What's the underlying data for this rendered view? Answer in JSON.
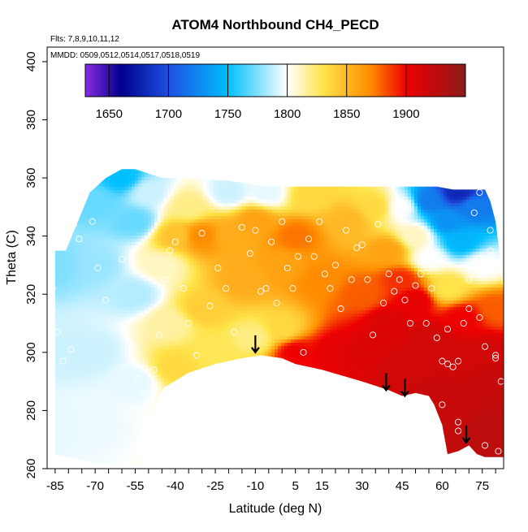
{
  "chart_data": {
    "type": "heatmap",
    "title": "ATOM4 Northbound CH4_PECD",
    "annotations": {
      "flights": "Flts: 7,8,9,10,11,12",
      "dates": "MMDD: 0509,0512,0514,0517,0518,0519"
    },
    "xlabel": "Latitude (deg N)",
    "ylabel": "Theta (C)",
    "xlim": [
      -88,
      83
    ],
    "ylim": [
      260,
      405
    ],
    "x_ticks": [
      "-85",
      "-70",
      "-55",
      "-40",
      "-25",
      "-10",
      "5",
      "15",
      "30",
      "45",
      "60",
      "75"
    ],
    "x_tick_values": [
      -85,
      -70,
      -55,
      -40,
      -25,
      -10,
      5,
      15,
      30,
      45,
      60,
      75
    ],
    "y_ticks": [
      "260",
      "280",
      "300",
      "320",
      "340",
      "360",
      "380",
      "400"
    ],
    "y_tick_values": [
      260,
      280,
      300,
      320,
      340,
      360,
      380,
      400
    ],
    "colorbar": {
      "min": 1630,
      "max": 1950,
      "ticks": [
        "1650",
        "1700",
        "1750",
        "1800",
        "1850",
        "1900"
      ],
      "tick_values": [
        1650,
        1700,
        1750,
        1800,
        1850,
        1900
      ],
      "stops": [
        {
          "value": 1630,
          "color": "#8a2be2"
        },
        {
          "value": 1660,
          "color": "#00008b"
        },
        {
          "value": 1700,
          "color": "#1e4fe0"
        },
        {
          "value": 1750,
          "color": "#00bfff"
        },
        {
          "value": 1800,
          "color": "#ffffff"
        },
        {
          "value": 1830,
          "color": "#ffe44a"
        },
        {
          "value": 1870,
          "color": "#ff8c00"
        },
        {
          "value": 1900,
          "color": "#ee0000"
        },
        {
          "value": 1950,
          "color": "#8b1a1a"
        }
      ]
    },
    "field_samples": [
      {
        "lat": -84,
        "theta": 330,
        "value": 1775
      },
      {
        "lat": -80,
        "theta": 300,
        "value": 1790
      },
      {
        "lat": -85,
        "theta": 275,
        "value": 1795
      },
      {
        "lat": -70,
        "theta": 352,
        "value": 1770
      },
      {
        "lat": -70,
        "theta": 330,
        "value": 1780
      },
      {
        "lat": -70,
        "theta": 300,
        "value": 1790
      },
      {
        "lat": -70,
        "theta": 275,
        "value": 1797
      },
      {
        "lat": -60,
        "theta": 360,
        "value": 1750
      },
      {
        "lat": -55,
        "theta": 345,
        "value": 1770
      },
      {
        "lat": -55,
        "theta": 320,
        "value": 1785
      },
      {
        "lat": -55,
        "theta": 290,
        "value": 1795
      },
      {
        "lat": -50,
        "theta": 355,
        "value": 1790
      },
      {
        "lat": -45,
        "theta": 330,
        "value": 1810
      },
      {
        "lat": -40,
        "theta": 340,
        "value": 1845
      },
      {
        "lat": -42,
        "theta": 310,
        "value": 1815
      },
      {
        "lat": -40,
        "theta": 295,
        "value": 1835
      },
      {
        "lat": -35,
        "theta": 350,
        "value": 1820
      },
      {
        "lat": -30,
        "theta": 340,
        "value": 1870
      },
      {
        "lat": -30,
        "theta": 315,
        "value": 1840
      },
      {
        "lat": -25,
        "theta": 300,
        "value": 1828
      },
      {
        "lat": -20,
        "theta": 355,
        "value": 1790
      },
      {
        "lat": -20,
        "theta": 340,
        "value": 1855
      },
      {
        "lat": -15,
        "theta": 325,
        "value": 1855
      },
      {
        "lat": -10,
        "theta": 345,
        "value": 1860
      },
      {
        "lat": -10,
        "theta": 305,
        "value": 1820
      },
      {
        "lat": -5,
        "theta": 355,
        "value": 1795
      },
      {
        "lat": 0,
        "theta": 330,
        "value": 1860
      },
      {
        "lat": 0,
        "theta": 308,
        "value": 1835
      },
      {
        "lat": 5,
        "theta": 340,
        "value": 1875
      },
      {
        "lat": 5,
        "theta": 300,
        "value": 1900
      },
      {
        "lat": 10,
        "theta": 354,
        "value": 1835
      },
      {
        "lat": 15,
        "theta": 325,
        "value": 1870
      },
      {
        "lat": 20,
        "theta": 300,
        "value": 1905
      },
      {
        "lat": 25,
        "theta": 345,
        "value": 1850
      },
      {
        "lat": 30,
        "theta": 320,
        "value": 1880
      },
      {
        "lat": 30,
        "theta": 300,
        "value": 1910
      },
      {
        "lat": 35,
        "theta": 350,
        "value": 1835
      },
      {
        "lat": 40,
        "theta": 335,
        "value": 1860
      },
      {
        "lat": 40,
        "theta": 310,
        "value": 1910
      },
      {
        "lat": 45,
        "theta": 350,
        "value": 1800
      },
      {
        "lat": 45,
        "theta": 325,
        "value": 1890
      },
      {
        "lat": 45,
        "theta": 295,
        "value": 1915
      },
      {
        "lat": 50,
        "theta": 340,
        "value": 1810
      },
      {
        "lat": 50,
        "theta": 318,
        "value": 1905
      },
      {
        "lat": 55,
        "theta": 352,
        "value": 1720
      },
      {
        "lat": 55,
        "theta": 332,
        "value": 1800
      },
      {
        "lat": 55,
        "theta": 305,
        "value": 1915
      },
      {
        "lat": 58,
        "theta": 285,
        "value": 1920
      },
      {
        "lat": 62,
        "theta": 345,
        "value": 1730
      },
      {
        "lat": 62,
        "theta": 322,
        "value": 1830
      },
      {
        "lat": 62,
        "theta": 300,
        "value": 1915
      },
      {
        "lat": 66,
        "theta": 355,
        "value": 1680
      },
      {
        "lat": 67,
        "theta": 338,
        "value": 1745
      },
      {
        "lat": 68,
        "theta": 312,
        "value": 1900
      },
      {
        "lat": 68,
        "theta": 280,
        "value": 1920
      },
      {
        "lat": 72,
        "theta": 350,
        "value": 1720
      },
      {
        "lat": 75,
        "theta": 330,
        "value": 1800
      },
      {
        "lat": 76,
        "theta": 300,
        "value": 1915
      },
      {
        "lat": 76,
        "theta": 275,
        "value": 1925
      },
      {
        "lat": 80,
        "theta": 315,
        "value": 1880
      },
      {
        "lat": 80,
        "theta": 290,
        "value": 1920
      },
      {
        "lat": 82,
        "theta": 270,
        "value": 1925
      }
    ],
    "coverage": {
      "top": [
        [
          -85,
          335
        ],
        [
          -81,
          335
        ],
        [
          -76,
          346
        ],
        [
          -72,
          355
        ],
        [
          -66,
          360
        ],
        [
          -60,
          363
        ],
        [
          -55,
          363
        ],
        [
          -45,
          360
        ],
        [
          -35,
          360
        ],
        [
          -20,
          359
        ],
        [
          -5,
          357
        ],
        [
          5,
          357
        ],
        [
          15,
          357
        ],
        [
          30,
          357
        ],
        [
          45,
          357
        ],
        [
          58,
          357
        ],
        [
          64,
          356
        ],
        [
          70,
          356
        ],
        [
          76,
          356
        ],
        [
          78,
          352
        ],
        [
          80,
          345
        ],
        [
          82,
          330
        ],
        [
          83,
          320
        ]
      ],
      "bottom": [
        [
          -85,
          265
        ],
        [
          -70,
          262
        ],
        [
          -57,
          261
        ],
        [
          -53,
          261
        ],
        [
          -53,
          275
        ],
        [
          -49,
          280
        ],
        [
          -44,
          288
        ],
        [
          -35,
          293
        ],
        [
          -25,
          296
        ],
        [
          -15,
          298
        ],
        [
          -8,
          299
        ],
        [
          0,
          298
        ],
        [
          5,
          296
        ],
        [
          15,
          294
        ],
        [
          30,
          290
        ],
        [
          40,
          287
        ],
        [
          45,
          285
        ],
        [
          50,
          286
        ],
        [
          55,
          285
        ],
        [
          57,
          282
        ],
        [
          60,
          275
        ],
        [
          62,
          265
        ],
        [
          66,
          266
        ],
        [
          70,
          268
        ],
        [
          73,
          265
        ],
        [
          76,
          264
        ],
        [
          80,
          264
        ],
        [
          83,
          264
        ]
      ]
    },
    "flight_points": [
      [
        -87,
        329
      ],
      [
        -86,
        322
      ],
      [
        -84,
        307
      ],
      [
        -82,
        297
      ],
      [
        -79,
        301
      ],
      [
        -78,
        344
      ],
      [
        -76,
        339
      ],
      [
        -71,
        345
      ],
      [
        -69,
        329
      ],
      [
        -66,
        318
      ],
      [
        -60,
        332
      ],
      [
        -56,
        302
      ],
      [
        -54,
        291
      ],
      [
        -52,
        286
      ],
      [
        -50,
        280
      ],
      [
        -48,
        294
      ],
      [
        -46,
        306
      ],
      [
        -44,
        325
      ],
      [
        -42,
        335
      ],
      [
        -40,
        338
      ],
      [
        -37,
        322
      ],
      [
        -35,
        310
      ],
      [
        -32,
        299
      ],
      [
        -30,
        341
      ],
      [
        -27,
        316
      ],
      [
        -24,
        329
      ],
      [
        -21,
        322
      ],
      [
        -18,
        307
      ],
      [
        -15,
        343
      ],
      [
        -12,
        334
      ],
      [
        -10,
        342
      ],
      [
        -8,
        321
      ],
      [
        -6,
        322
      ],
      [
        -4,
        338
      ],
      [
        -2,
        317
      ],
      [
        0,
        345
      ],
      [
        2,
        329
      ],
      [
        4,
        322
      ],
      [
        6,
        333
      ],
      [
        8,
        300
      ],
      [
        10,
        339
      ],
      [
        12,
        333
      ],
      [
        14,
        345
      ],
      [
        16,
        327
      ],
      [
        18,
        322
      ],
      [
        20,
        330
      ],
      [
        22,
        315
      ],
      [
        24,
        342
      ],
      [
        26,
        325
      ],
      [
        28,
        336
      ],
      [
        30,
        337
      ],
      [
        32,
        325
      ],
      [
        34,
        306
      ],
      [
        36,
        344
      ],
      [
        38,
        317
      ],
      [
        40,
        327
      ],
      [
        42,
        321
      ],
      [
        44,
        325
      ],
      [
        46,
        318
      ],
      [
        48,
        310
      ],
      [
        50,
        323
      ],
      [
        52,
        327
      ],
      [
        54,
        310
      ],
      [
        56,
        322
      ],
      [
        58,
        305
      ],
      [
        60,
        282
      ],
      [
        62,
        308
      ],
      [
        64,
        295
      ],
      [
        66,
        297
      ],
      [
        68,
        310
      ],
      [
        70,
        315
      ],
      [
        72,
        330
      ],
      [
        74,
        312
      ],
      [
        76,
        302
      ],
      [
        78,
        342
      ],
      [
        80,
        299
      ],
      [
        62,
        296
      ],
      [
        66,
        273
      ],
      [
        70,
        325
      ],
      [
        72,
        348
      ],
      [
        74,
        355
      ],
      [
        78,
        335
      ],
      [
        79,
        355
      ],
      [
        80,
        298
      ],
      [
        82,
        290
      ],
      [
        60,
        297
      ],
      [
        66,
        276
      ],
      [
        76,
        268
      ],
      [
        81,
        266
      ]
    ],
    "arrows": [
      {
        "lat": -10,
        "theta": 300
      },
      {
        "lat": 39,
        "theta": 287
      },
      {
        "lat": 46,
        "theta": 285
      },
      {
        "lat": 69,
        "theta": 269
      }
    ]
  }
}
